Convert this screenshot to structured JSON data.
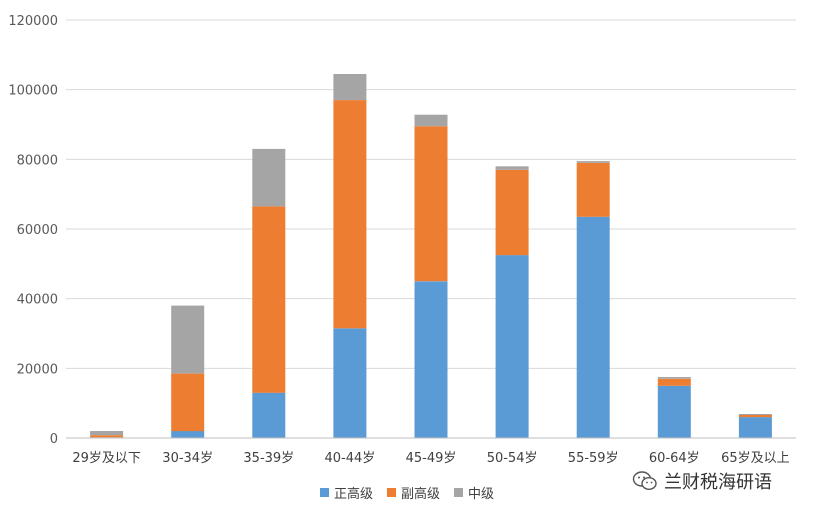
{
  "chart_data": {
    "type": "bar",
    "stacked": true,
    "categories": [
      "29岁及以下",
      "30-34岁",
      "35-39岁",
      "40-44岁",
      "45-49岁",
      "50-54岁",
      "55-59岁",
      "60-64岁",
      "65岁及以上"
    ],
    "series": [
      {
        "name": "正高级",
        "color": "#5B9BD5",
        "values": [
          200,
          2000,
          13000,
          31500,
          45000,
          52500,
          63500,
          15000,
          6000
        ]
      },
      {
        "name": "副高级",
        "color": "#ED7D31",
        "values": [
          600,
          16500,
          53500,
          65500,
          44500,
          24500,
          15500,
          2000,
          600
        ]
      },
      {
        "name": "中级",
        "color": "#A5A5A5",
        "values": [
          1200,
          19500,
          16500,
          7500,
          3300,
          1000,
          500,
          500,
          300
        ]
      }
    ],
    "yticks": [
      "0",
      "20000",
      "40000",
      "60000",
      "80000",
      "100000",
      "120000"
    ],
    "ylim": [
      0,
      120000
    ],
    "grid": true,
    "legend_position": "bottom"
  },
  "watermark": {
    "text": "兰财税海研语",
    "icon": "wechat-icon"
  }
}
